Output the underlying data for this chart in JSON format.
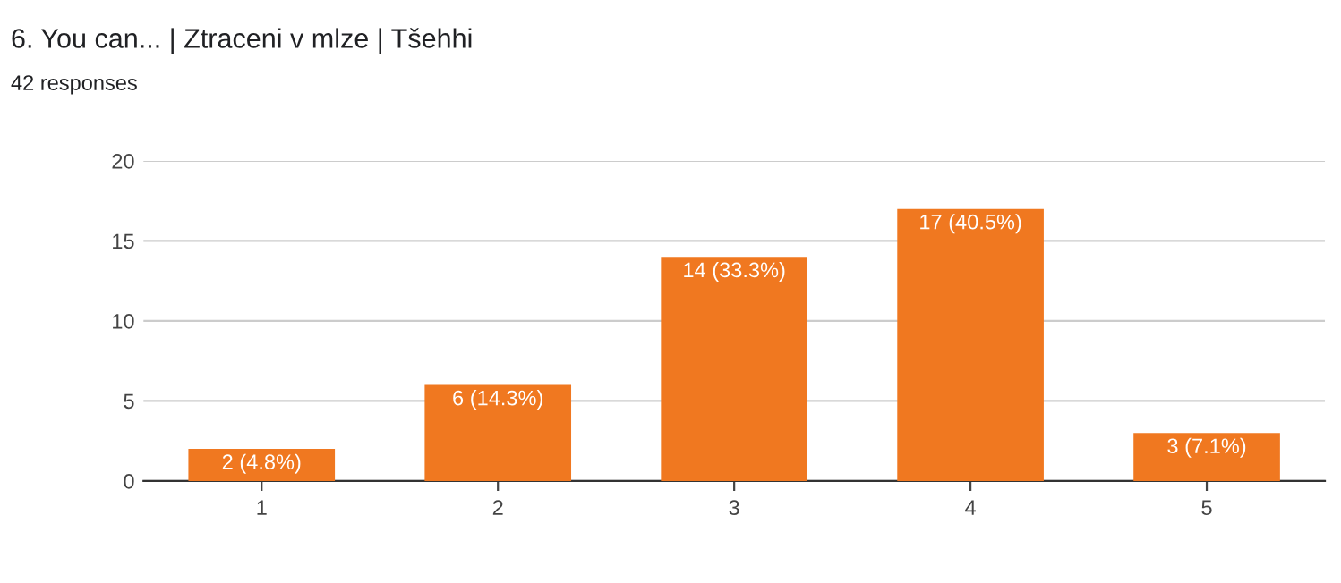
{
  "chart_data": {
    "type": "bar",
    "title": "6. You can... | Ztraceni v mlze | Tšehhi",
    "subtitle": "42 responses",
    "categories": [
      "1",
      "2",
      "3",
      "4",
      "5"
    ],
    "values": [
      2,
      6,
      14,
      17,
      3
    ],
    "value_labels": [
      "2 (4.8%)",
      "6 (14.3%)",
      "14 (33.3%)",
      "17 (40.5%)",
      "3 (7.1%)"
    ],
    "color": "#f07820",
    "ylim": [
      0,
      20
    ],
    "yticks": [
      0,
      5,
      10,
      15,
      20
    ],
    "grid": "y"
  }
}
